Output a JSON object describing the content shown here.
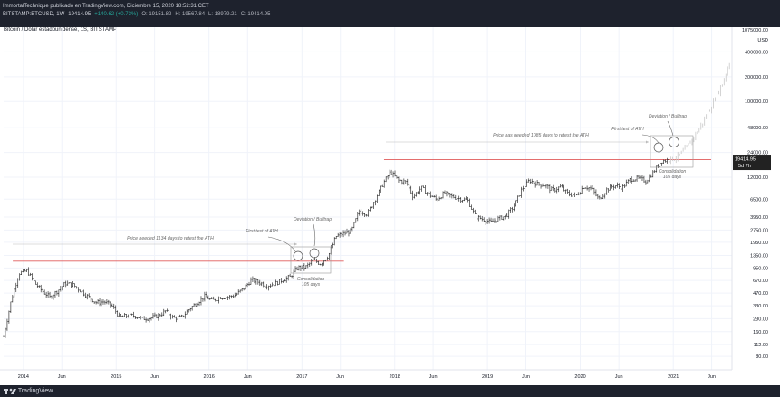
{
  "header": {
    "byline": "ImmortalTechnique publicado en TradingView.com, Diciembre 15, 2020 18:52:31 CET",
    "symbol": "BITSTAMP:BTCUSD, 1W",
    "last": "19414.95",
    "change": "+140.62 (+0.73%)",
    "o": "O: 19151.82",
    "h": "H: 19567.84",
    "l": "L: 18979.21",
    "c": "C: 19414.95"
  },
  "footer": {
    "brand": "TradingView",
    "logo_icon": "tradingview-logo-icon"
  },
  "colors": {
    "candles": "#333333",
    "projection": "#c8c8c8",
    "ath_line": "#e05a5a",
    "annotation": "#666666",
    "price_tag": "#222222"
  },
  "chart_data": {
    "type": "line",
    "title": "Bitcoin / Dólar estadounidense, 1S, BITSTAMP",
    "scale": "log",
    "ylim": [
      55,
      800000
    ],
    "x_ticks": [
      "2014",
      "Jun",
      "2015",
      "Jun",
      "2016",
      "Jun",
      "2017",
      "Jun",
      "2018",
      "Jun",
      "2019",
      "Jun",
      "2020",
      "Jun",
      "2021",
      "Jun"
    ],
    "y_ticks": [
      "1075000.00",
      "USD",
      "400000.00",
      "200000.00",
      "100000.00",
      "48000.00",
      "24000.00",
      "12000.00",
      "6500.00",
      "3950.00",
      "2750.00",
      "1950.00",
      "1350.00",
      "950.00",
      "670.00",
      "470.00",
      "330.00",
      "230.00",
      "160.00",
      "112.00",
      "80.00"
    ],
    "price_tag": {
      "value": "19414.95",
      "countdown": "5d 7h"
    },
    "series": [
      {
        "role": "weekly closes (approx.)",
        "x": [
          "2013-10",
          "2013-11",
          "2013-12",
          "2014-01",
          "2014-02",
          "2014-03",
          "2014-04",
          "2014-05",
          "2014-06",
          "2014-07",
          "2014-08",
          "2014-09",
          "2014-10",
          "2014-11",
          "2014-12",
          "2015-01",
          "2015-02",
          "2015-03",
          "2015-04",
          "2015-05",
          "2015-06",
          "2015-07",
          "2015-08",
          "2015-09",
          "2015-10",
          "2015-11",
          "2015-12",
          "2016-01",
          "2016-02",
          "2016-03",
          "2016-04",
          "2016-05",
          "2016-06",
          "2016-07",
          "2016-08",
          "2016-09",
          "2016-10",
          "2016-11",
          "2016-12",
          "2017-01",
          "2017-02",
          "2017-03",
          "2017-04",
          "2017-05",
          "2017-06",
          "2017-07",
          "2017-08",
          "2017-09",
          "2017-10",
          "2017-11",
          "2017-12",
          "2018-01",
          "2018-02",
          "2018-03",
          "2018-04",
          "2018-05",
          "2018-06",
          "2018-07",
          "2018-08",
          "2018-09",
          "2018-10",
          "2018-11",
          "2018-12",
          "2019-01",
          "2019-02",
          "2019-03",
          "2019-04",
          "2019-05",
          "2019-06",
          "2019-07",
          "2019-08",
          "2019-09",
          "2019-10",
          "2019-11",
          "2019-12",
          "2020-01",
          "2020-02",
          "2020-03",
          "2020-04",
          "2020-05",
          "2020-06",
          "2020-07",
          "2020-08",
          "2020-09",
          "2020-10",
          "2020-11",
          "2020-12"
        ],
        "y": [
          140,
          400,
          820,
          880,
          620,
          500,
          420,
          500,
          620,
          590,
          500,
          420,
          360,
          370,
          330,
          240,
          250,
          250,
          230,
          235,
          250,
          285,
          235,
          240,
          300,
          360,
          430,
          380,
          420,
          420,
          450,
          530,
          680,
          640,
          580,
          610,
          680,
          740,
          960,
          970,
          1180,
          1070,
          1350,
          2300,
          2500,
          2700,
          4700,
          4300,
          6400,
          9900,
          14000,
          11000,
          10500,
          7000,
          9000,
          7500,
          6400,
          7700,
          7000,
          6600,
          6300,
          4000,
          3700,
          3400,
          3800,
          4100,
          5300,
          8500,
          11000,
          10000,
          9600,
          8300,
          9200,
          7500,
          7200,
          9300,
          8700,
          6400,
          8600,
          9500,
          9100,
          11300,
          11700,
          10800,
          13800,
          18900,
          19414.95
        ]
      },
      {
        "role": "projected path (grey)",
        "x": [
          "2020-12",
          "2021-01",
          "2021-02",
          "2021-03",
          "2021-04",
          "2021-05",
          "2021-06",
          "2021-07",
          "2021-08"
        ],
        "y": [
          19414.95,
          21000,
          26000,
          34000,
          48000,
          70000,
          110000,
          170000,
          330000
        ]
      }
    ],
    "ath_lines": [
      {
        "value": 1150,
        "label": "Price needed 1134 days to retest the ATH"
      },
      {
        "value": 19700,
        "label": "Price has needed 1085 days to retest the ATH"
      }
    ],
    "annotations": [
      {
        "text": "First test of ATH",
        "x": "2017-01"
      },
      {
        "text": "Deviation / Bulltrap",
        "x": "2017-03"
      },
      {
        "text": "Consolidation",
        "x": "2017-02"
      },
      {
        "text": "105 days",
        "x": "2017-02"
      },
      {
        "text": "First test of ATH",
        "x": "2020-12"
      },
      {
        "text": "Deviation / Bulltrap",
        "x": "2021-01"
      },
      {
        "text": "Consolidation",
        "x": "2020-12"
      },
      {
        "text": "105 days",
        "x": "2020-12"
      }
    ]
  }
}
